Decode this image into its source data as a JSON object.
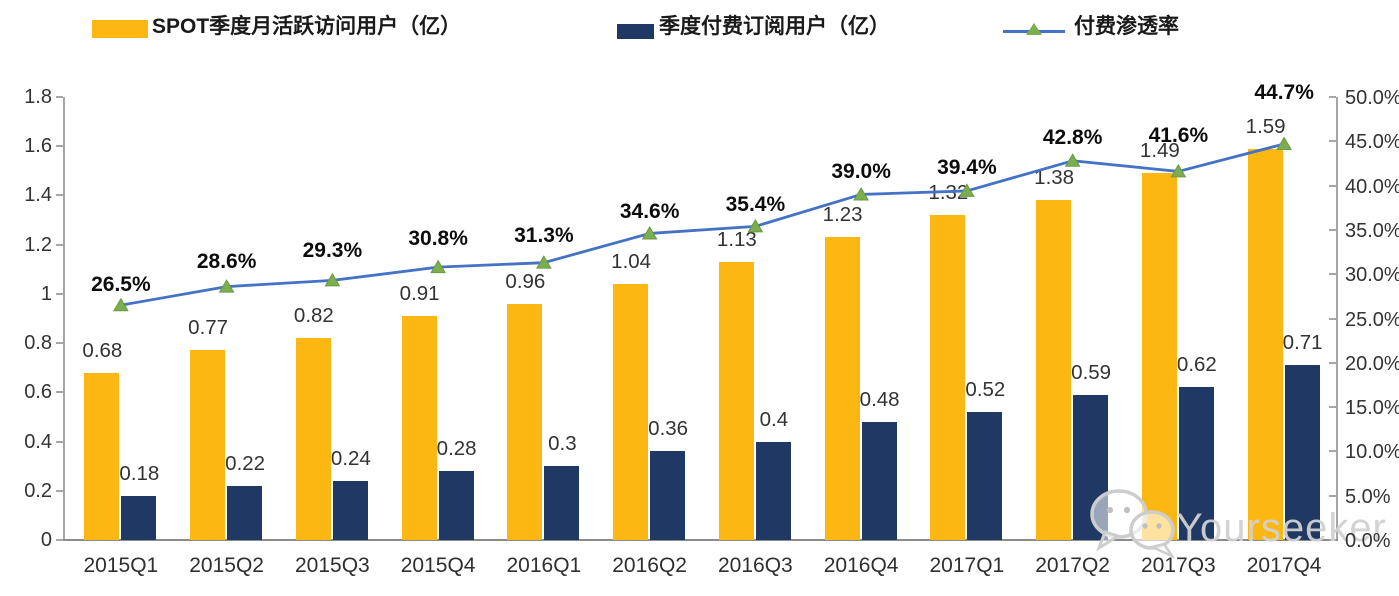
{
  "legend": [
    {
      "label": "SPOT季度月活跃访问用户（亿）",
      "color": "#FCB712",
      "type": "bar"
    },
    {
      "label": "季度付费订阅用户（亿）",
      "color": "#1F3864",
      "type": "bar"
    },
    {
      "label": "付费渗透率",
      "color": "#4472C4",
      "marker_color": "#7CAD4E",
      "type": "line"
    }
  ],
  "watermark": {
    "icon": "wechat-icon",
    "text": "Yourseeker"
  },
  "chart_data": {
    "type": "combo-bar-line",
    "categories": [
      "2015Q1",
      "2015Q2",
      "2015Q3",
      "2015Q4",
      "2016Q1",
      "2016Q2",
      "2016Q3",
      "2016Q4",
      "2017Q1",
      "2017Q2",
      "2017Q3",
      "2017Q4"
    ],
    "series": [
      {
        "name": "SPOT季度月活跃访问用户（亿）",
        "type": "bar",
        "axis": "left",
        "color": "#FCB712",
        "values": [
          0.68,
          0.77,
          0.82,
          0.91,
          0.96,
          1.04,
          1.13,
          1.23,
          1.32,
          1.38,
          1.49,
          1.59
        ],
        "labels": [
          "0.68",
          "0.77",
          "0.82",
          "0.91",
          "0.96",
          "1.04",
          "1.13",
          "1.23",
          "1.32",
          "1.38",
          "1.49",
          "1.59"
        ]
      },
      {
        "name": "季度付费订阅用户（亿）",
        "type": "bar",
        "axis": "left",
        "color": "#1F3864",
        "values": [
          0.18,
          0.22,
          0.24,
          0.28,
          0.3,
          0.36,
          0.4,
          0.48,
          0.52,
          0.59,
          0.62,
          0.71
        ],
        "labels": [
          "0.18",
          "0.22",
          "0.24",
          "0.28",
          "0.3",
          "0.36",
          "0.4",
          "0.48",
          "0.52",
          "0.59",
          "0.62",
          "0.71"
        ]
      },
      {
        "name": "付费渗透率",
        "type": "line",
        "axis": "right",
        "color": "#4472C4",
        "marker": "triangle",
        "marker_color": "#7CAD4E",
        "values": [
          26.5,
          28.6,
          29.3,
          30.8,
          31.3,
          34.6,
          35.4,
          39.0,
          39.4,
          42.8,
          41.6,
          44.7
        ],
        "labels": [
          "26.5%",
          "28.6%",
          "29.3%",
          "30.8%",
          "31.3%",
          "34.6%",
          "35.4%",
          "39.0%",
          "39.4%",
          "42.8%",
          "41.6%",
          "44.7%"
        ]
      }
    ],
    "left_axis": {
      "min": 0,
      "max": 1.8,
      "ticks": [
        "0",
        "0.2",
        "0.4",
        "0.6",
        "0.8",
        "1",
        "1.2",
        "1.4",
        "1.6",
        "1.8"
      ]
    },
    "right_axis": {
      "min": 0,
      "max": 50,
      "ticks": [
        "0.0%",
        "5.0%",
        "10.0%",
        "15.0%",
        "20.0%",
        "25.0%",
        "30.0%",
        "35.0%",
        "40.0%",
        "45.0%",
        "50.0%"
      ]
    },
    "grid": "off",
    "legend_position": "top"
  }
}
